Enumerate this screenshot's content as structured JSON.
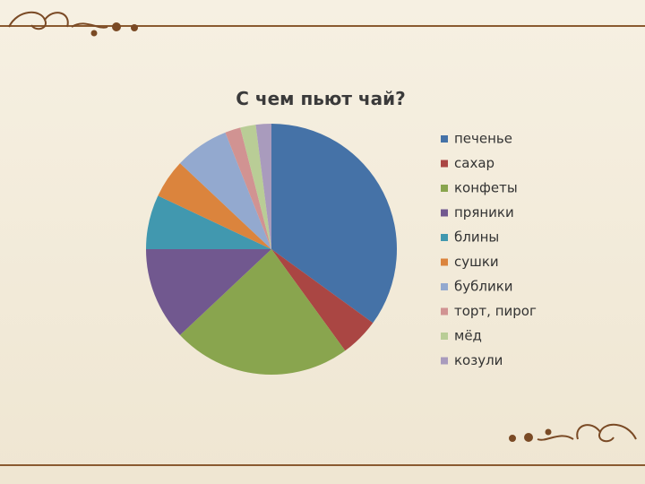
{
  "chart_data": {
    "type": "pie",
    "title": "С чем пьют чай?",
    "categories": [
      "печенье",
      "сахар",
      "конфеты",
      "пряники",
      "блины",
      "сушки",
      "бублики",
      "торт, пирог",
      "мёд",
      "козули"
    ],
    "values": [
      35,
      5,
      23,
      12,
      7,
      5,
      7,
      2,
      2,
      2
    ],
    "colors": [
      "#4572a7",
      "#aa4643",
      "#89a54e",
      "#71588f",
      "#4198af",
      "#db843d",
      "#93a9cf",
      "#d19392",
      "#b9cd96",
      "#a99bbd"
    ],
    "legend": "right"
  }
}
